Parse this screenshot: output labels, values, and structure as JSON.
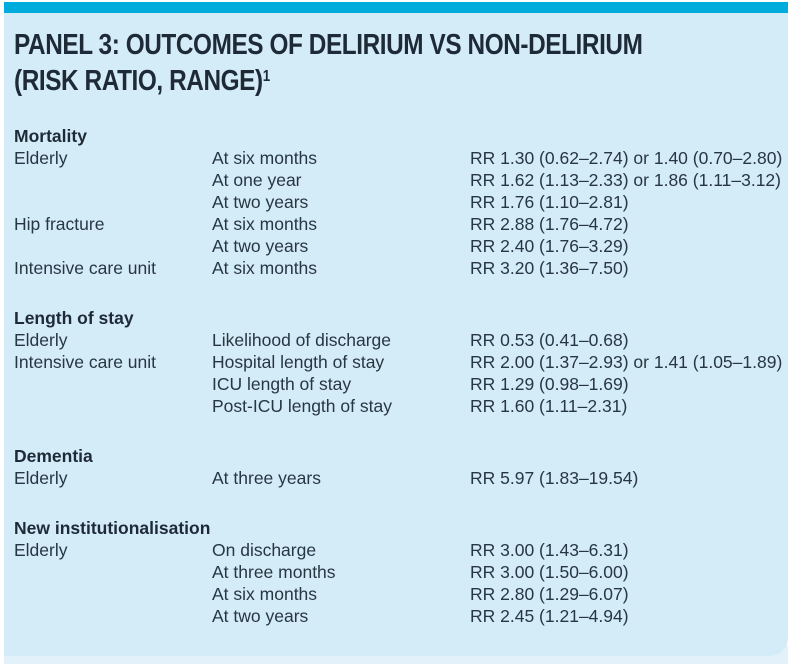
{
  "panel": {
    "title": {
      "line1": "PANEL 3: OUTCOMES OF DELIRIUM VS NON-DELIRIUM",
      "line2": "(RISK RATIO, RANGE)",
      "reference_superscript": "1"
    },
    "colors": {
      "accent_bar": "#00ACDB",
      "panel_background": "#D4ECF8",
      "footer_strip": "#E3F2FA",
      "title_text": "#1E2A36",
      "body_text": "#273741"
    },
    "sections": [
      {
        "heading": "Mortality",
        "rows": [
          {
            "population": "Elderly",
            "timing": "At six months",
            "value": "RR 1.30 (0.62–2.74) or 1.40 (0.70–2.80)"
          },
          {
            "population": "",
            "timing": "At one year",
            "value": "RR 1.62 (1.13–2.33) or 1.86 (1.11–3.12)"
          },
          {
            "population": "",
            "timing": "At two years",
            "value": "RR 1.76 (1.10–2.81)"
          },
          {
            "population": "Hip fracture",
            "timing": "At six months",
            "value": "RR 2.88 (1.76–4.72)"
          },
          {
            "population": "",
            "timing": "At two years",
            "value": "RR 2.40 (1.76–3.29)"
          },
          {
            "population": "Intensive care unit",
            "timing": "At six months",
            "value": "RR 3.20 (1.36–7.50)"
          }
        ]
      },
      {
        "heading": "Length of stay",
        "rows": [
          {
            "population": "Elderly",
            "timing": "Likelihood of discharge",
            "value": "RR 0.53 (0.41–0.68)"
          },
          {
            "population": "Intensive care unit",
            "timing": "Hospital length of stay",
            "value": "RR 2.00 (1.37–2.93) or 1.41 (1.05–1.89)"
          },
          {
            "population": "",
            "timing": "ICU length of stay",
            "value": "RR 1.29 (0.98–1.69)"
          },
          {
            "population": "",
            "timing": "Post-ICU length of stay",
            "value": "RR 1.60 (1.11–2.31)"
          }
        ]
      },
      {
        "heading": "Dementia",
        "rows": [
          {
            "population": "Elderly",
            "timing": "At three years",
            "value": "RR 5.97 (1.83–19.54)"
          }
        ]
      },
      {
        "heading": "New institutionalisation",
        "rows": [
          {
            "population": "Elderly",
            "timing": "On discharge",
            "value": "RR 3.00 (1.43–6.31)"
          },
          {
            "population": "",
            "timing": "At three months",
            "value": "RR 3.00 (1.50–6.00)"
          },
          {
            "population": "",
            "timing": "At six months",
            "value": "RR 2.80 (1.29–6.07)"
          },
          {
            "population": "",
            "timing": "At two years",
            "value": "RR 2.45 (1.21–4.94)"
          }
        ]
      }
    ]
  }
}
